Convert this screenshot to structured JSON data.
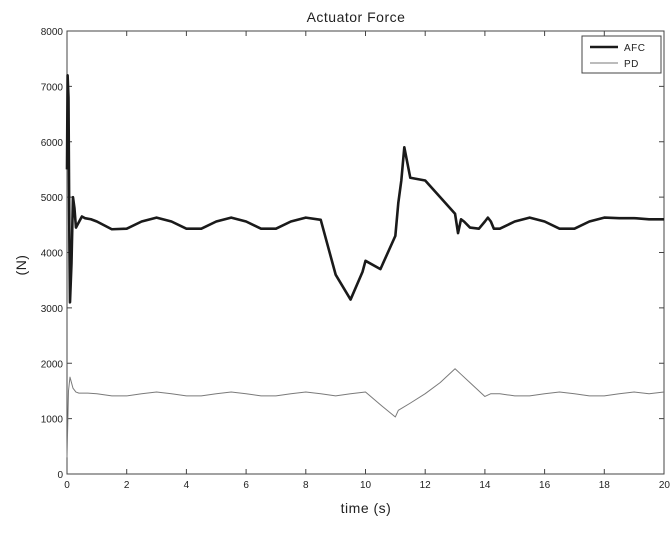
{
  "chart_data": {
    "type": "line",
    "title": "Actuator Force",
    "xlabel": "time (s)",
    "ylabel": "(N)",
    "xlim": [
      0,
      20
    ],
    "ylim": [
      0,
      8000
    ],
    "xticks": [
      "0",
      "2",
      "4",
      "6",
      "8",
      "10",
      "12",
      "14",
      "16",
      "18",
      "20"
    ],
    "yticks": [
      "0",
      "1000",
      "2000",
      "3000",
      "4000",
      "5000",
      "6000",
      "7000",
      "8000"
    ],
    "grid": false,
    "legend_position": "top-right",
    "series": [
      {
        "name": "AFC",
        "color": "#1a1a1a",
        "style": "thick",
        "x": [
          0,
          0.02,
          0.05,
          0.08,
          0.1,
          0.15,
          0.2,
          0.25,
          0.3,
          0.35,
          0.4,
          0.5,
          0.6,
          0.8,
          1,
          1.5,
          2,
          2.5,
          3,
          3.5,
          4,
          4.5,
          5,
          5.5,
          6,
          6.5,
          7,
          7.5,
          8,
          8.5,
          9,
          9.5,
          9.9,
          10,
          10.5,
          11,
          11.1,
          11.2,
          11.3,
          11.5,
          12,
          12.5,
          13,
          13.1,
          13.2,
          13.3,
          13.5,
          13.8,
          14,
          14.1,
          14.2,
          14.3,
          14.5,
          15,
          15.5,
          16,
          16.5,
          17,
          17.5,
          18,
          18.5,
          19,
          19.5,
          20
        ],
        "y": [
          5500,
          7200,
          6800,
          4200,
          3100,
          3800,
          5000,
          4800,
          4450,
          4500,
          4550,
          4650,
          4620,
          4600,
          4560,
          4420,
          4430,
          4560,
          4630,
          4560,
          4430,
          4430,
          4560,
          4630,
          4560,
          4430,
          4430,
          4560,
          4630,
          4590,
          3600,
          3150,
          3650,
          3850,
          3700,
          4300,
          4900,
          5300,
          5900,
          5350,
          5300,
          5000,
          4700,
          4350,
          4600,
          4560,
          4450,
          4430,
          4560,
          4630,
          4560,
          4430,
          4430,
          4560,
          4630,
          4560,
          4430,
          4430,
          4560,
          4630,
          4620,
          4620,
          4600,
          4600
        ],
        "x_fix_note": ""
      },
      {
        "name": "PD",
        "color": "#7a7a7a",
        "style": "thin",
        "x": [
          0,
          0.05,
          0.1,
          0.15,
          0.2,
          0.3,
          0.4,
          0.5,
          0.7,
          1,
          1.5,
          2,
          2.5,
          3,
          3.5,
          4,
          4.5,
          5,
          5.5,
          6,
          6.5,
          7,
          7.5,
          8,
          8.5,
          9,
          9.5,
          10,
          10.5,
          11,
          11.1,
          11.5,
          12,
          12.5,
          13,
          13.2,
          13.5,
          14,
          14.2,
          14.5,
          15,
          15.5,
          16,
          16.5,
          17,
          17.5,
          18,
          18.5,
          19,
          19.5,
          20
        ],
        "y": [
          300,
          1500,
          1750,
          1650,
          1550,
          1480,
          1460,
          1460,
          1460,
          1450,
          1410,
          1410,
          1450,
          1480,
          1450,
          1410,
          1410,
          1450,
          1480,
          1450,
          1410,
          1410,
          1450,
          1480,
          1450,
          1410,
          1450,
          1480,
          1250,
          1030,
          1150,
          1280,
          1450,
          1650,
          1900,
          1800,
          1650,
          1400,
          1450,
          1450,
          1410,
          1410,
          1450,
          1480,
          1450,
          1410,
          1410,
          1450,
          1480,
          1450,
          1480
        ]
      }
    ]
  }
}
